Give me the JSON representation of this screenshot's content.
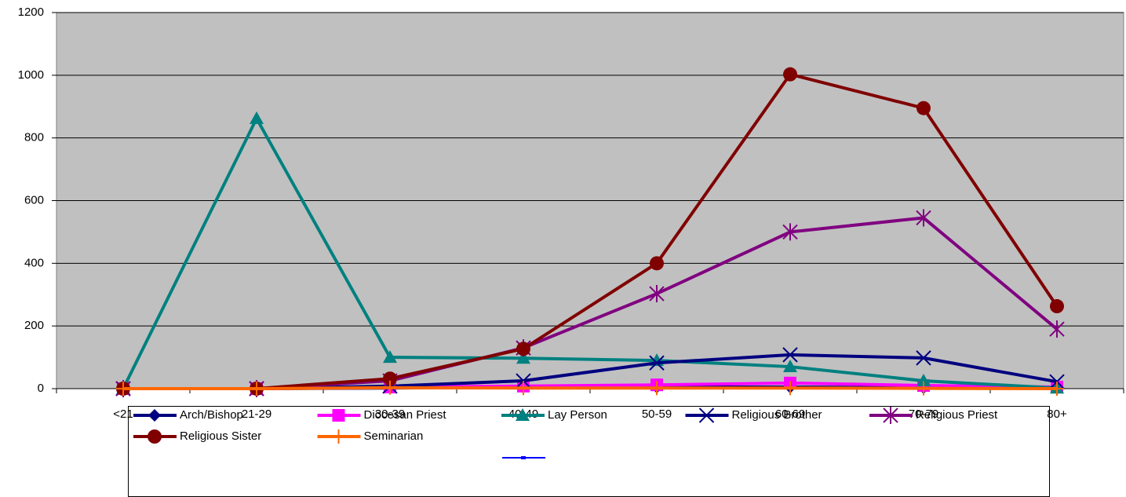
{
  "chart_data": {
    "type": "line",
    "categories": [
      "<21",
      "21-29",
      "30-39",
      "40-49",
      "50-59",
      "60-69",
      "70-79",
      "80+"
    ],
    "ylim": [
      0,
      1200
    ],
    "yticks": [
      0,
      200,
      400,
      600,
      800,
      1000,
      1200
    ],
    "grid": true,
    "series": [
      {
        "name": "Arch/Bishop",
        "color": "#000080",
        "marker": "diamond",
        "values": [
          0,
          0,
          2,
          5,
          5,
          5,
          3,
          1
        ]
      },
      {
        "name": "Diocesan Priest",
        "color": "#FF00FF",
        "marker": "square",
        "values": [
          0,
          0,
          5,
          8,
          12,
          18,
          10,
          5
        ]
      },
      {
        "name": "Lay Person",
        "color": "#008080",
        "marker": "triangle",
        "values": [
          0,
          862,
          100,
          97,
          90,
          70,
          25,
          2
        ]
      },
      {
        "name": "Religious Brother",
        "color": "#000080",
        "marker": "x",
        "values": [
          0,
          0,
          8,
          25,
          82,
          108,
          98,
          22
        ]
      },
      {
        "name": "Religious Priest",
        "color": "#800080",
        "marker": "star",
        "values": [
          0,
          0,
          25,
          130,
          303,
          500,
          545,
          190
        ]
      },
      {
        "name": "Religious Sister",
        "color": "#800000",
        "marker": "circle",
        "values": [
          0,
          0,
          32,
          127,
          400,
          1003,
          895,
          263
        ]
      },
      {
        "name": "Seminarian",
        "color": "#FF6600",
        "marker": "plus",
        "values": [
          0,
          0,
          3,
          2,
          2,
          2,
          1,
          0
        ]
      }
    ]
  }
}
